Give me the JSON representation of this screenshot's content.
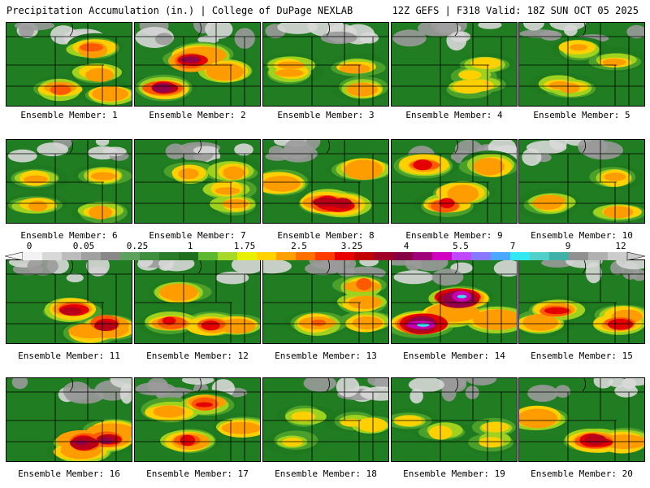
{
  "header": {
    "left": "Precipitation Accumulation (in.) | College of DuPage NEXLAB",
    "right": "12Z GEFS | F318 Valid: 18Z SUN OCT 05 2025"
  },
  "panels": [
    {
      "label": "Ensemble Member: 1"
    },
    {
      "label": "Ensemble Member: 2"
    },
    {
      "label": "Ensemble Member: 3"
    },
    {
      "label": "Ensemble Member: 4"
    },
    {
      "label": "Ensemble Member: 5"
    },
    {
      "label": "Ensemble Member: 6"
    },
    {
      "label": "Ensemble Member: 7"
    },
    {
      "label": "Ensemble Member: 8"
    },
    {
      "label": "Ensemble Member: 9"
    },
    {
      "label": "Ensemble Member: 10"
    },
    {
      "label": "Ensemble Member: 11"
    },
    {
      "label": "Ensemble Member: 12"
    },
    {
      "label": "Ensemble Member: 13"
    },
    {
      "label": "Ensemble Member: 14"
    },
    {
      "label": "Ensemble Member: 15"
    },
    {
      "label": "Ensemble Member: 16"
    },
    {
      "label": "Ensemble Member: 17"
    },
    {
      "label": "Ensemble Member: 18"
    },
    {
      "label": "Ensemble Member: 19"
    },
    {
      "label": "Ensemble Member: 20"
    }
  ],
  "chart_data": {
    "type": "heatmap",
    "title": "Precipitation Accumulation (in.)",
    "units": "in.",
    "legend_ticks": [
      "0",
      "0.05",
      "0.25",
      "1",
      "1.75",
      "2.5",
      "3.25",
      "4",
      "5.5",
      "7",
      "9",
      "12"
    ],
    "legend_tick_values": [
      0,
      0.05,
      0.25,
      1,
      1.75,
      2.5,
      3.25,
      4,
      5.5,
      7,
      9,
      12
    ],
    "legend_colors": [
      "#f2f2f2",
      "#d8d8d8",
      "#bcbcbc",
      "#a0a0a0",
      "#888888",
      "#5ea05e",
      "#3f8f3f",
      "#2a7d2a",
      "#1e6e1e",
      "#5cb82e",
      "#a8d82a",
      "#e8f000",
      "#ffd200",
      "#ffa000",
      "#ff7000",
      "#ff3c00",
      "#e80000",
      "#c00000",
      "#a00028",
      "#880044",
      "#a0007a",
      "#d000c0",
      "#c048ff",
      "#8878ff",
      "#4aa8ff",
      "#30e8f0",
      "#50d0c8",
      "#40b0a8",
      "#909090",
      "#b0b0b0",
      "#cccccc"
    ],
    "members": [
      {
        "member": 1,
        "peak_in": 3.0
      },
      {
        "member": 2,
        "peak_in": 4.5
      },
      {
        "member": 3,
        "peak_in": 2.5
      },
      {
        "member": 4,
        "peak_in": 2.0
      },
      {
        "member": 5,
        "peak_in": 2.3
      },
      {
        "member": 6,
        "peak_in": 2.5
      },
      {
        "member": 7,
        "peak_in": 2.4
      },
      {
        "member": 8,
        "peak_in": 4.3
      },
      {
        "member": 9,
        "peak_in": 3.6
      },
      {
        "member": 10,
        "peak_in": 2.5
      },
      {
        "member": 11,
        "peak_in": 4.0
      },
      {
        "member": 12,
        "peak_in": 3.4
      },
      {
        "member": 13,
        "peak_in": 3.0
      },
      {
        "member": 14,
        "peak_in": 7.0
      },
      {
        "member": 15,
        "peak_in": 3.5
      },
      {
        "member": 16,
        "peak_in": 4.5
      },
      {
        "member": 17,
        "peak_in": 3.4
      },
      {
        "member": 18,
        "peak_in": 2.0
      },
      {
        "member": 19,
        "peak_in": 2.0
      },
      {
        "member": 20,
        "peak_in": 4.3
      }
    ]
  }
}
